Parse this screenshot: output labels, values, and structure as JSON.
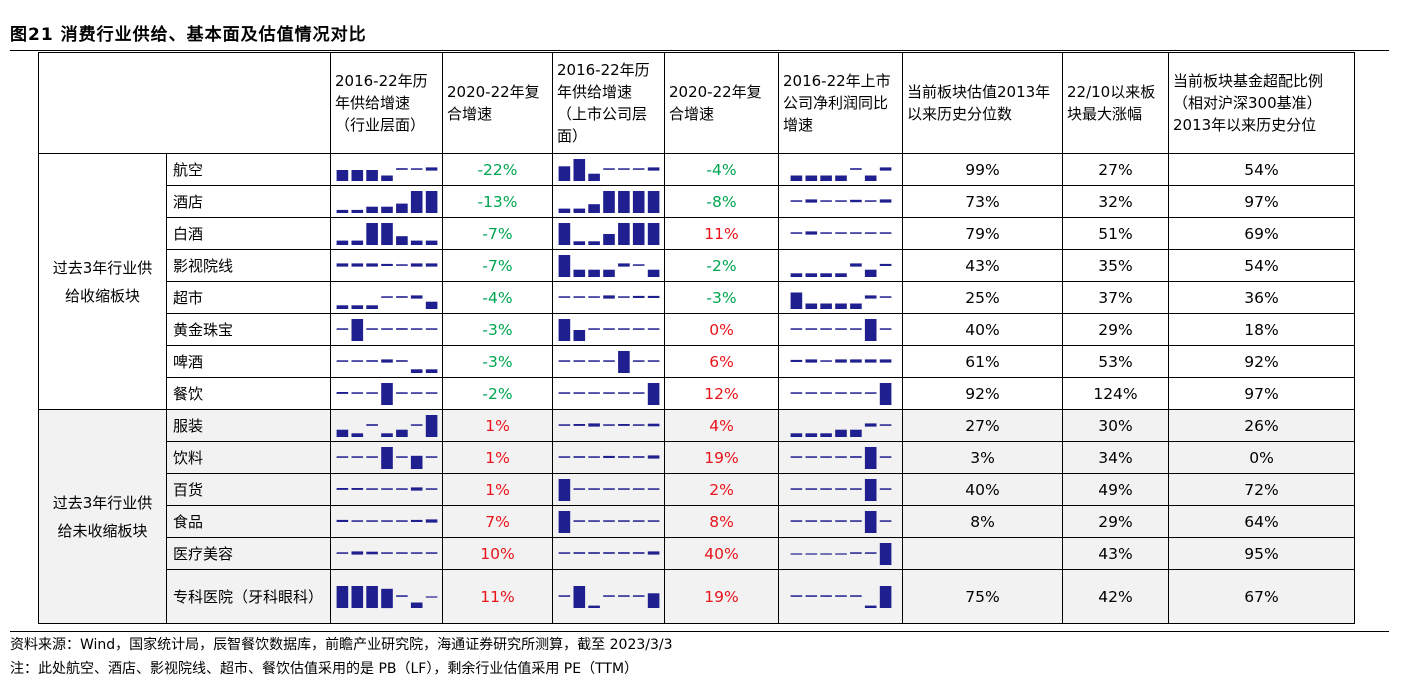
{
  "title": "图21 消费行业供给、基本面及估值情况对比",
  "headers": [
    "2016-22年历年供给增速（行业层面）",
    "2020-22年复合增速",
    "2016-22年历年供给增速（上市公司层面）",
    "2020-22年复合增速",
    "2016-22年上市公司净利润同比增速",
    "当前板块估值2013年以来历史分位数",
    "22/10以来板块最大涨幅",
    "当前板块基金超配比例（相对沪深300基准）2013年以来历史分位"
  ],
  "groups": [
    {
      "label": "过去3年行业供给收缩板块"
    },
    {
      "label": "过去3年行业供给未收缩板块"
    }
  ],
  "colors": {
    "negative": "#00a651",
    "positive": "#e8141a",
    "bar": "#1f1f8f"
  },
  "rows": [
    {
      "name": "航空",
      "ind_cagr": "-22%",
      "cmp_cagr": "-4%",
      "val_pct": "99%",
      "max_gain": "27%",
      "fund_pct": "54%",
      "spark_ind": [
        2,
        2,
        2,
        1,
        -2,
        -1,
        -4
      ],
      "spark_cmp": [
        2,
        3,
        1,
        -1,
        -1,
        -1,
        -3
      ],
      "spark_np": [
        1,
        1,
        1,
        1,
        -2,
        1,
        -4
      ]
    },
    {
      "name": "酒店",
      "ind_cagr": "-13%",
      "cmp_cagr": "-8%",
      "val_pct": "73%",
      "max_gain": "32%",
      "fund_pct": "97%",
      "spark_ind": [
        1,
        1,
        2,
        2,
        3,
        7,
        7
      ],
      "spark_cmp": [
        1,
        1,
        2,
        5,
        5,
        5,
        5
      ],
      "spark_np": [
        -1,
        -4,
        -1,
        -1,
        -3,
        -1,
        -4
      ]
    },
    {
      "name": "白酒",
      "ind_cagr": "-7%",
      "cmp_cagr": "11%",
      "val_pct": "79%",
      "max_gain": "51%",
      "fund_pct": "69%",
      "spark_ind": [
        1,
        1,
        5,
        5,
        2,
        1,
        1
      ],
      "spark_cmp": [
        6,
        1,
        1,
        3,
        6,
        6,
        6
      ],
      "spark_np": [
        -1,
        -7,
        -3,
        -2,
        -2,
        -2,
        -2
      ]
    },
    {
      "name": "影视院线",
      "ind_cagr": "-7%",
      "cmp_cagr": "-2%",
      "val_pct": "43%",
      "max_gain": "35%",
      "fund_pct": "54%",
      "spark_ind": [
        -3,
        -3,
        -3,
        -2,
        -1,
        -3,
        -3
      ],
      "spark_cmp": [
        3,
        1,
        1,
        1,
        -3,
        -1,
        1
      ],
      "spark_np": [
        1,
        1,
        1,
        1,
        -6,
        2,
        -4
      ]
    },
    {
      "name": "超市",
      "ind_cagr": "-4%",
      "cmp_cagr": "-3%",
      "val_pct": "25%",
      "max_gain": "37%",
      "fund_pct": "36%",
      "spark_ind": [
        1,
        1,
        1,
        -2,
        -3,
        -6,
        2
      ],
      "spark_cmp": [
        -1,
        -1,
        -1,
        -3,
        -1,
        -2,
        -2
      ],
      "spark_np": [
        3,
        1,
        1,
        1,
        1,
        -4,
        -1
      ]
    },
    {
      "name": "黄金珠宝",
      "ind_cagr": "-3%",
      "cmp_cagr": "0%",
      "val_pct": "40%",
      "max_gain": "29%",
      "fund_pct": "18%",
      "spark_ind": [
        -1,
        4,
        -1,
        -1,
        -2,
        -1,
        -1
      ],
      "spark_cmp": [
        6,
        3,
        -1,
        -1,
        -1,
        -1,
        -1
      ],
      "spark_np": [
        -1,
        -1,
        -1,
        -1,
        -1,
        6,
        -1
      ]
    },
    {
      "name": "啤酒",
      "ind_cagr": "-3%",
      "cmp_cagr": "6%",
      "val_pct": "61%",
      "max_gain": "53%",
      "fund_pct": "92%",
      "spark_ind": [
        -2,
        -2,
        -3,
        -6,
        -3,
        1,
        1
      ],
      "spark_cmp": [
        -1,
        -1,
        -1,
        -1,
        5,
        -1,
        -1
      ],
      "spark_np": [
        -2,
        -3,
        -1,
        -3,
        -3,
        -3,
        -3
      ]
    },
    {
      "name": "餐饮",
      "ind_cagr": "-2%",
      "cmp_cagr": "12%",
      "val_pct": "92%",
      "max_gain": "124%",
      "fund_pct": "97%",
      "spark_ind": [
        -3,
        -1,
        -2,
        5,
        -1,
        -1,
        -1
      ],
      "spark_cmp": [
        -1,
        -1,
        -1,
        -1,
        -1,
        -1,
        6
      ],
      "spark_np": [
        -1,
        -1,
        -1,
        -2,
        -2,
        -2,
        6
      ]
    },
    {
      "name": "服装",
      "ind_cagr": "1%",
      "cmp_cagr": "4%",
      "val_pct": "27%",
      "max_gain": "30%",
      "fund_pct": "26%",
      "spark_ind": [
        2,
        1,
        -3,
        1,
        2,
        -1,
        6
      ],
      "spark_cmp": [
        -2,
        -3,
        -5,
        -1,
        -3,
        -2,
        -4
      ],
      "spark_np": [
        1,
        1,
        1,
        2,
        2,
        -6,
        -2
      ]
    },
    {
      "name": "饮料",
      "ind_cagr": "1%",
      "cmp_cagr": "19%",
      "val_pct": "3%",
      "max_gain": "34%",
      "fund_pct": "0%",
      "spark_ind": [
        -1,
        -1,
        -2,
        5,
        -2,
        3,
        -1
      ],
      "spark_cmp": [
        -1,
        -3,
        -2,
        -4,
        -3,
        -3,
        -6
      ],
      "spark_np": [
        -1,
        -1,
        -1,
        -2,
        -3,
        6,
        -1
      ]
    },
    {
      "name": "百货",
      "ind_cagr": "1%",
      "cmp_cagr": "2%",
      "val_pct": "40%",
      "max_gain": "49%",
      "fund_pct": "72%",
      "spark_ind": [
        -3,
        -3,
        -2,
        -1,
        -1,
        -5,
        -1
      ],
      "spark_cmp": [
        6,
        -1,
        -1,
        -1,
        -1,
        -1,
        -1
      ],
      "spark_np": [
        -1,
        -1,
        -1,
        -1,
        -1,
        6,
        -1
      ]
    },
    {
      "name": "食品",
      "ind_cagr": "7%",
      "cmp_cagr": "8%",
      "val_pct": "8%",
      "max_gain": "29%",
      "fund_pct": "64%",
      "spark_ind": [
        -4,
        -1,
        -2,
        -1,
        -1,
        -4,
        -6
      ],
      "spark_cmp": [
        6,
        -1,
        -1,
        -1,
        -1,
        -1,
        -1
      ],
      "spark_np": [
        -1,
        -1,
        -1,
        -1,
        -1,
        6,
        -1
      ]
    },
    {
      "name": "医疗美容",
      "ind_cagr": "10%",
      "cmp_cagr": "40%",
      "val_pct": "",
      "max_gain": "43%",
      "fund_pct": "95%",
      "spark_ind": [
        -2,
        -5,
        -4,
        -1,
        -1,
        -1,
        -1
      ],
      "spark_cmp": [
        -2,
        -3,
        -3,
        -3,
        -3,
        -3,
        -6
      ],
      "spark_np": [
        0,
        0,
        0,
        0,
        -1,
        -1,
        6
      ]
    },
    {
      "name": "专科医院（牙科眼科）",
      "ind_cagr": "11%",
      "cmp_cagr": "19%",
      "val_pct": "75%",
      "max_gain": "42%",
      "fund_pct": "67%",
      "spark_ind": [
        8,
        8,
        8,
        7,
        -1,
        2,
        0
      ],
      "spark_cmp": [
        -1,
        9,
        1,
        -1,
        -1,
        -1,
        6
      ],
      "spark_np": [
        -1,
        -1,
        -1,
        -1,
        -2,
        1,
        9
      ]
    }
  ],
  "notes": [
    "资料来源：Wind，国家统计局，辰智餐饮数据库，前瞻产业研究院，海通证券研究所测算，截至 2023/3/3",
    "注：此处航空、酒店、影视院线、超市、餐饮估值采用的是 PB（LF），剩余行业估值采用 PE（TTM）"
  ]
}
